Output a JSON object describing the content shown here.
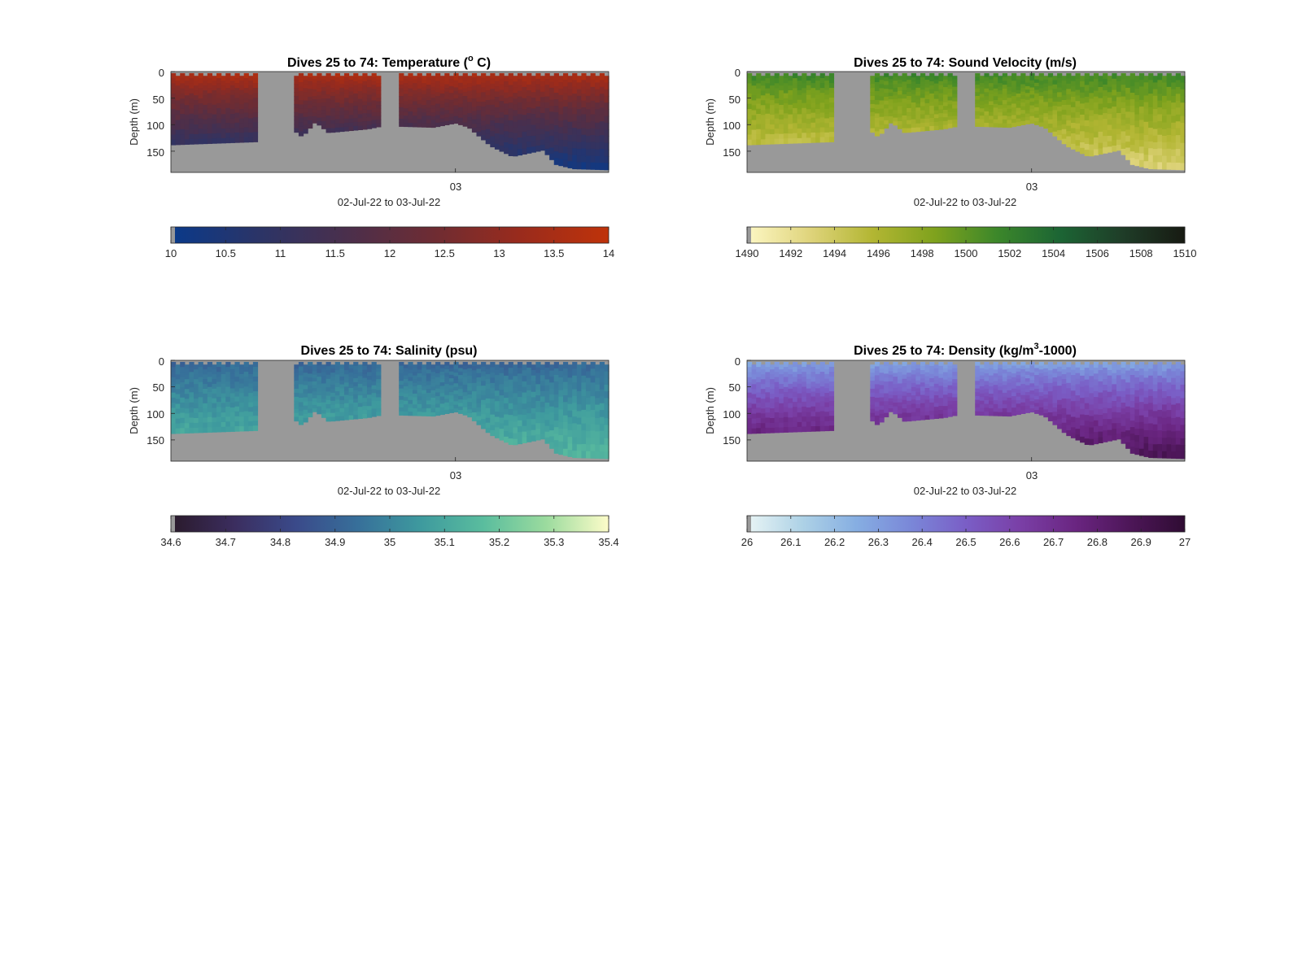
{
  "chart_data": [
    {
      "type": "heatmap",
      "title_main": "Dives 25 to 74: Temperature (",
      "title_sup": "o",
      "title_tail": " C)",
      "xlabel": "02-Jul-22 to 03-Jul-22",
      "x_tick_label": "03",
      "ylabel": "Depth (m)",
      "y_ticks": [
        "0",
        "50",
        "100",
        "150"
      ],
      "ylim": [
        0,
        190
      ],
      "colorbar": {
        "min": 10,
        "max": 14,
        "ticks": [
          "10",
          "10.5",
          "11",
          "11.5",
          "12",
          "12.5",
          "13",
          "13.5",
          "14"
        ],
        "colors": [
          "#0a3a8a",
          "#2b3467",
          "#4a2f4c",
          "#6e2c33",
          "#9a2b1c",
          "#bf330a"
        ]
      },
      "field": {
        "surface_value": 13.8,
        "bottom_value": 10.2
      },
      "nodata_color": "#999999"
    },
    {
      "type": "heatmap",
      "title_main": "Dives 25 to 74: Sound Velocity (m/s)",
      "title_sup": "",
      "title_tail": "",
      "xlabel": "02-Jul-22 to 03-Jul-22",
      "x_tick_label": "03",
      "ylabel": "Depth (m)",
      "y_ticks": [
        "0",
        "50",
        "100",
        "150"
      ],
      "ylim": [
        0,
        190
      ],
      "colorbar": {
        "min": 1490,
        "max": 1510,
        "ticks": [
          "1490",
          "1492",
          "1494",
          "1496",
          "1498",
          "1500",
          "1502",
          "1504",
          "1506",
          "1508",
          "1510"
        ],
        "colors": [
          "#fdf7c4",
          "#dfd47c",
          "#b3b633",
          "#7fa21d",
          "#3c872a",
          "#1c6534",
          "#1f3d28",
          "#171a12"
        ]
      },
      "field": {
        "surface_value": 1502,
        "bottom_value": 1493
      },
      "nodata_color": "#999999"
    },
    {
      "type": "heatmap",
      "title_main": "Dives 25 to 74: Salinity (psu)",
      "title_sup": "",
      "title_tail": "",
      "xlabel": "02-Jul-22 to 03-Jul-22",
      "x_tick_label": "03",
      "ylabel": "Depth (m)",
      "y_ticks": [
        "0",
        "50",
        "100",
        "150"
      ],
      "ylim": [
        0,
        190
      ],
      "colorbar": {
        "min": 34.6,
        "max": 35.4,
        "ticks": [
          "34.6",
          "34.7",
          "34.8",
          "34.9",
          "35",
          "35.1",
          "35.2",
          "35.3",
          "35.4"
        ],
        "colors": [
          "#2a1a2b",
          "#3b2d5e",
          "#3a4a8a",
          "#37709a",
          "#3e9a9e",
          "#5abd9e",
          "#9bdb9e",
          "#fdfcc9"
        ]
      },
      "field": {
        "surface_value": 34.9,
        "bottom_value": 35.15
      },
      "nodata_color": "#999999"
    },
    {
      "type": "heatmap",
      "title_main": "Dives 25 to 74: Density (kg/m",
      "title_sup": "3",
      "title_tail": "-1000)",
      "xlabel": "02-Jul-22 to 03-Jul-22",
      "x_tick_label": "03",
      "ylabel": "Depth (m)",
      "y_ticks": [
        "0",
        "50",
        "100",
        "150"
      ],
      "ylim": [
        0,
        190
      ],
      "colorbar": {
        "min": 26,
        "max": 27,
        "ticks": [
          "26",
          "26.1",
          "26.2",
          "26.3",
          "26.4",
          "26.5",
          "26.6",
          "26.7",
          "26.8",
          "26.9",
          "27"
        ],
        "colors": [
          "#e9f5f5",
          "#aed2e6",
          "#86aee2",
          "#7a87d8",
          "#7a5ec6",
          "#7a3fa6",
          "#6a2581",
          "#4d1658",
          "#2f0c33"
        ]
      },
      "field": {
        "surface_value": 26.25,
        "bottom_value": 26.9
      },
      "nodata_color": "#999999"
    }
  ]
}
